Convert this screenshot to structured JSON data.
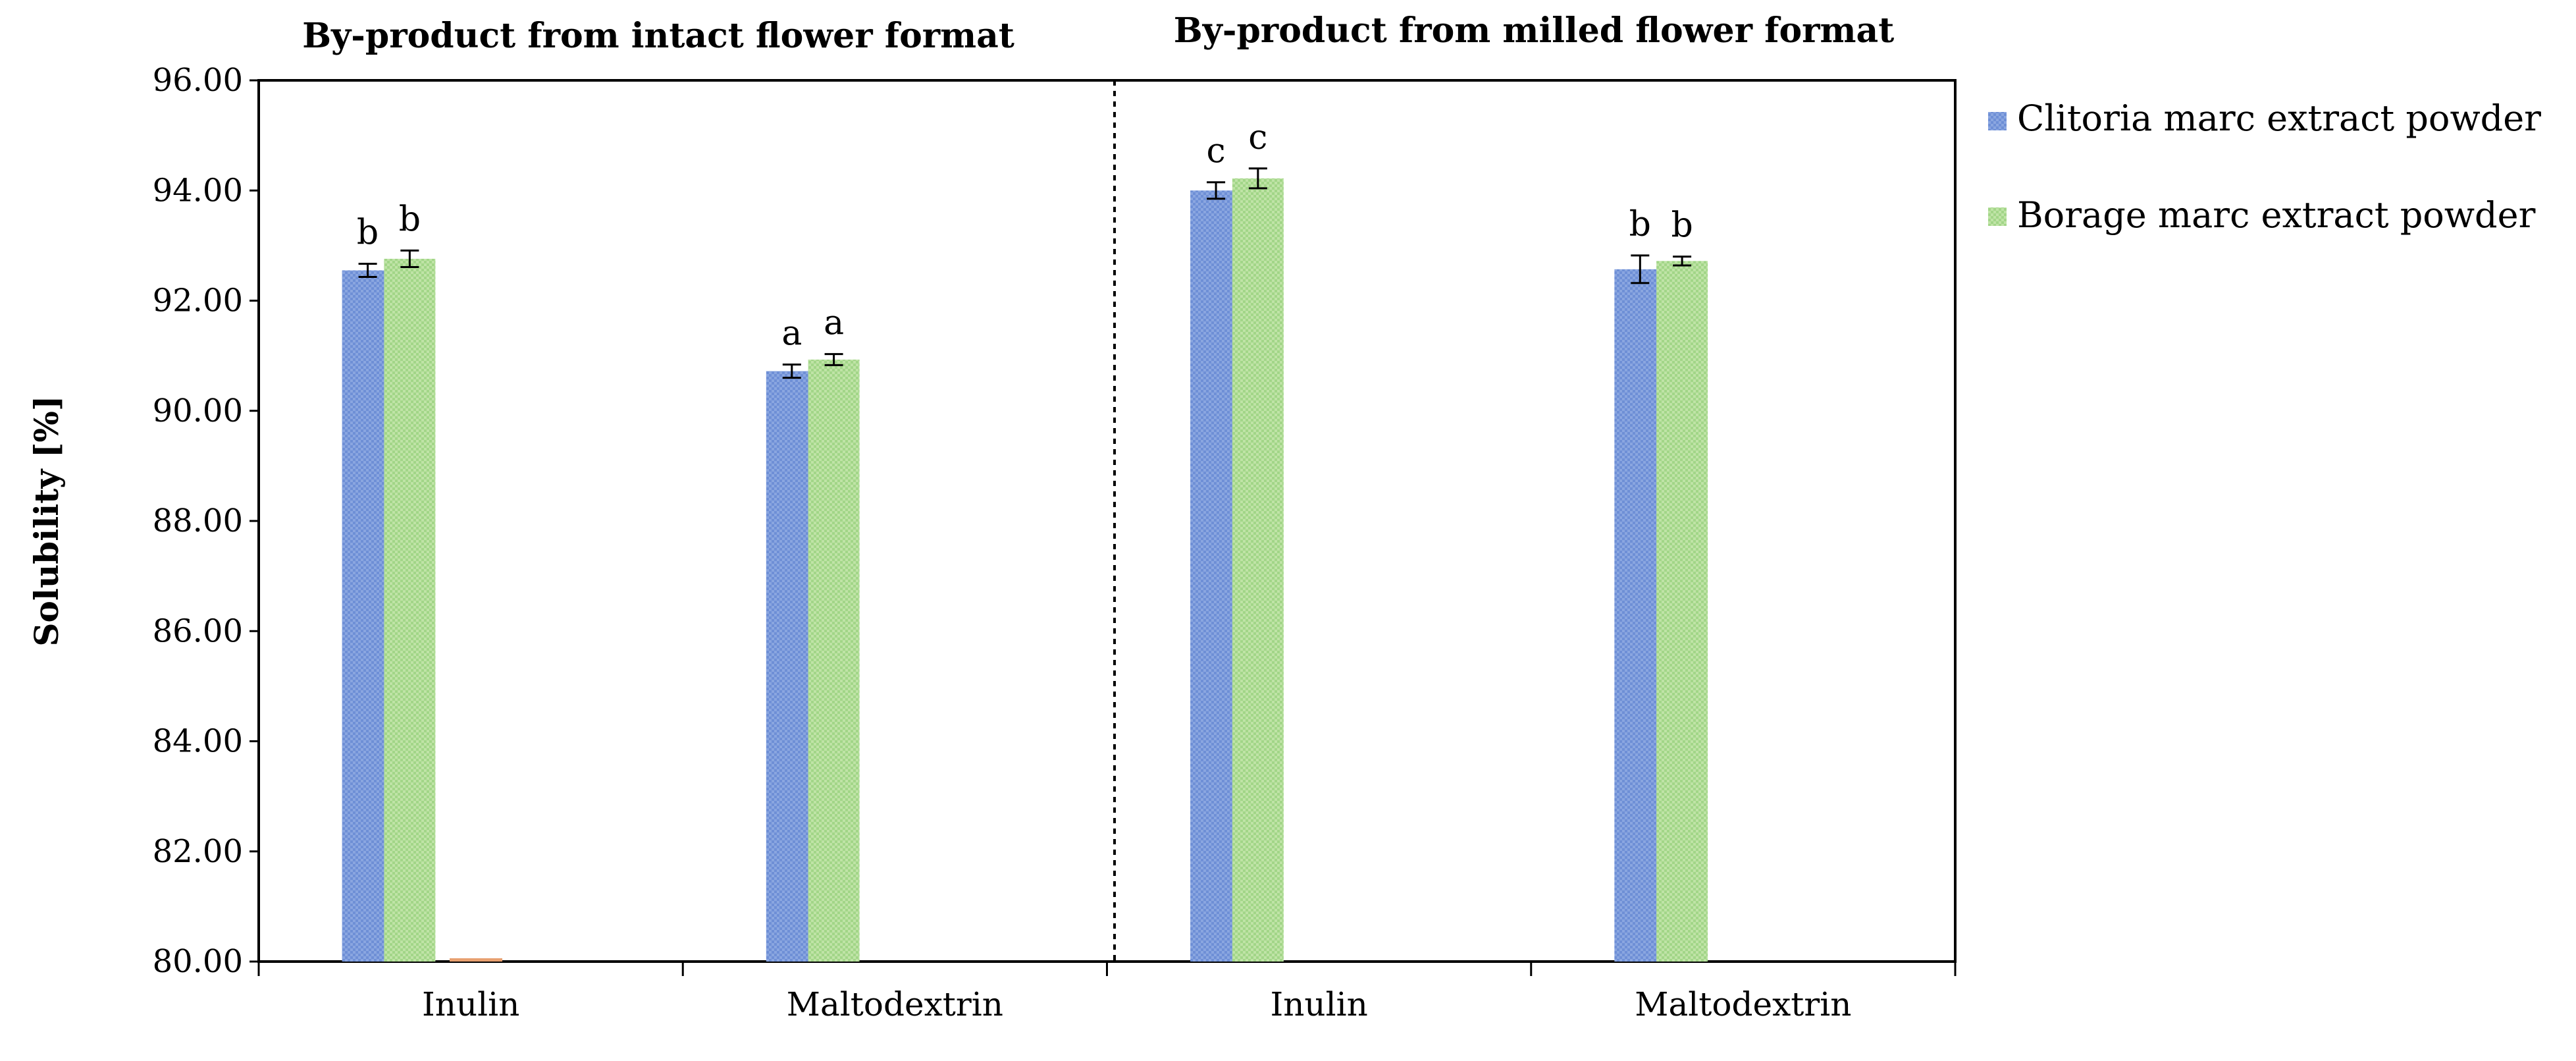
{
  "chart_data": {
    "type": "bar",
    "ylabel": "Solubility [%]",
    "ylim": [
      80,
      96
    ],
    "yticks": [
      "80.00",
      "82.00",
      "84.00",
      "86.00",
      "88.00",
      "90.00",
      "92.00",
      "94.00",
      "96.00"
    ],
    "grid": false,
    "legend_position": "right",
    "sections": [
      {
        "title": "By-product from intact flower format"
      },
      {
        "title": "By-product from milled flower format"
      }
    ],
    "groups": [
      {
        "label": "Inulin",
        "section": 0
      },
      {
        "label": "Maltodextrin",
        "section": 0
      },
      {
        "label": "Inulin",
        "section": 1
      },
      {
        "label": "Maltodextrin",
        "section": 1
      }
    ],
    "series": [
      {
        "name": "Clitoria marc extract powder",
        "color": "#7f9fdc",
        "values": [
          92.55,
          90.72,
          94.0,
          92.57
        ],
        "errors": [
          0.12,
          0.12,
          0.15,
          0.25
        ],
        "significance": [
          "b",
          "a",
          "c",
          "b"
        ]
      },
      {
        "name": "Borage marc extract powder",
        "color": "#a8d98a",
        "values": [
          92.76,
          90.93,
          94.22,
          92.72
        ],
        "errors": [
          0.15,
          0.1,
          0.18,
          0.08
        ],
        "significance": [
          "b",
          "a",
          "c",
          "b"
        ]
      }
    ]
  }
}
